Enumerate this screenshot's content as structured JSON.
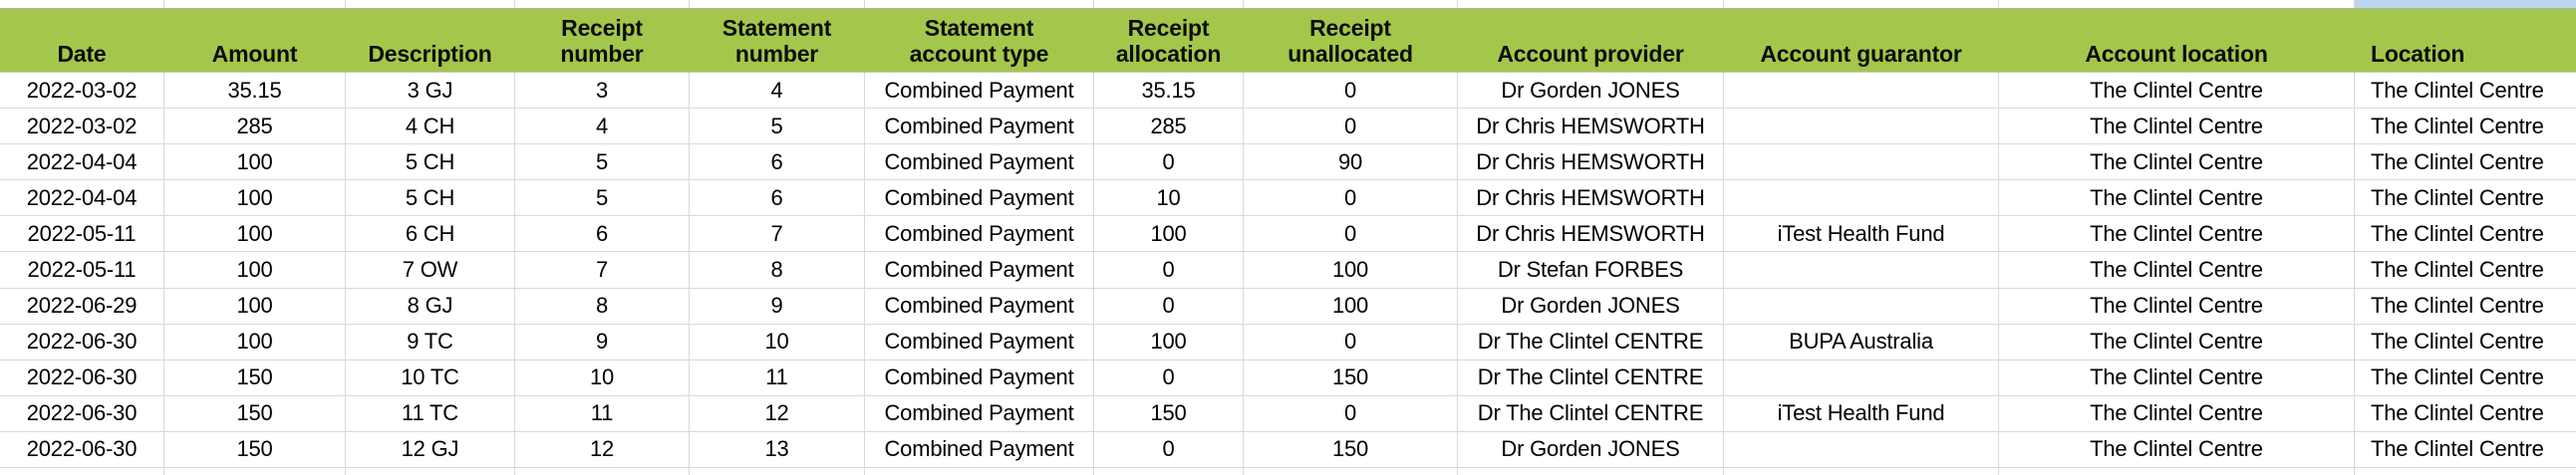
{
  "colors": {
    "header_bg": "#A4C74B",
    "selected_cell_above": "#BDD6EE",
    "grid_line": "#D9D9D9",
    "text": "#000000"
  },
  "table": {
    "columns": [
      {
        "id": "date",
        "label": "Date"
      },
      {
        "id": "amount",
        "label": "Amount"
      },
      {
        "id": "description",
        "label": "Description"
      },
      {
        "id": "receipt_number",
        "label": "Receipt\nnumber"
      },
      {
        "id": "statement_number",
        "label": "Statement\nnumber"
      },
      {
        "id": "statement_account_type",
        "label": "Statement\naccount type"
      },
      {
        "id": "receipt_allocation",
        "label": "Receipt\nallocation"
      },
      {
        "id": "receipt_unallocated",
        "label": "Receipt\nunallocated"
      },
      {
        "id": "account_provider",
        "label": "Account provider"
      },
      {
        "id": "account_guarantor",
        "label": "Account guarantor"
      },
      {
        "id": "account_location",
        "label": "Account location"
      },
      {
        "id": "location",
        "label": "Location"
      }
    ],
    "rows": [
      [
        "2022-03-02",
        "35.15",
        "3 GJ",
        "3",
        "4",
        "Combined Payment",
        "35.15",
        "0",
        "Dr Gorden JONES",
        "",
        "The Clintel Centre",
        "The Clintel Centre"
      ],
      [
        "2022-03-02",
        "285",
        "4 CH",
        "4",
        "5",
        "Combined Payment",
        "285",
        "0",
        "Dr Chris HEMSWORTH",
        "",
        "The Clintel Centre",
        "The Clintel Centre"
      ],
      [
        "2022-04-04",
        "100",
        "5 CH",
        "5",
        "6",
        "Combined Payment",
        "0",
        "90",
        "Dr Chris HEMSWORTH",
        "",
        "The Clintel Centre",
        "The Clintel Centre"
      ],
      [
        "2022-04-04",
        "100",
        "5 CH",
        "5",
        "6",
        "Combined Payment",
        "10",
        "0",
        "Dr Chris HEMSWORTH",
        "",
        "The Clintel Centre",
        "The Clintel Centre"
      ],
      [
        "2022-05-11",
        "100",
        "6 CH",
        "6",
        "7",
        "Combined Payment",
        "100",
        "0",
        "Dr Chris HEMSWORTH",
        "iTest Health Fund",
        "The Clintel Centre",
        "The Clintel Centre"
      ],
      [
        "2022-05-11",
        "100",
        "7 OW",
        "7",
        "8",
        "Combined Payment",
        "0",
        "100",
        "Dr Stefan FORBES",
        "",
        "The Clintel Centre",
        "The Clintel Centre"
      ],
      [
        "2022-06-29",
        "100",
        "8 GJ",
        "8",
        "9",
        "Combined Payment",
        "0",
        "100",
        "Dr Gorden JONES",
        "",
        "The Clintel Centre",
        "The Clintel Centre"
      ],
      [
        "2022-06-30",
        "100",
        "9 TC",
        "9",
        "10",
        "Combined Payment",
        "100",
        "0",
        "Dr The Clintel CENTRE",
        "BUPA Australia",
        "The Clintel Centre",
        "The Clintel Centre"
      ],
      [
        "2022-06-30",
        "150",
        "10 TC",
        "10",
        "11",
        "Combined Payment",
        "0",
        "150",
        "Dr The Clintel CENTRE",
        "",
        "The Clintel Centre",
        "The Clintel Centre"
      ],
      [
        "2022-06-30",
        "150",
        "11 TC",
        "11",
        "12",
        "Combined Payment",
        "150",
        "0",
        "Dr The Clintel CENTRE",
        "iTest Health Fund",
        "The Clintel Centre",
        "The Clintel Centre"
      ],
      [
        "2022-06-30",
        "150",
        "12 GJ",
        "12",
        "13",
        "Combined Payment",
        "0",
        "150",
        "Dr Gorden JONES",
        "",
        "The Clintel Centre",
        "The Clintel Centre"
      ]
    ]
  }
}
